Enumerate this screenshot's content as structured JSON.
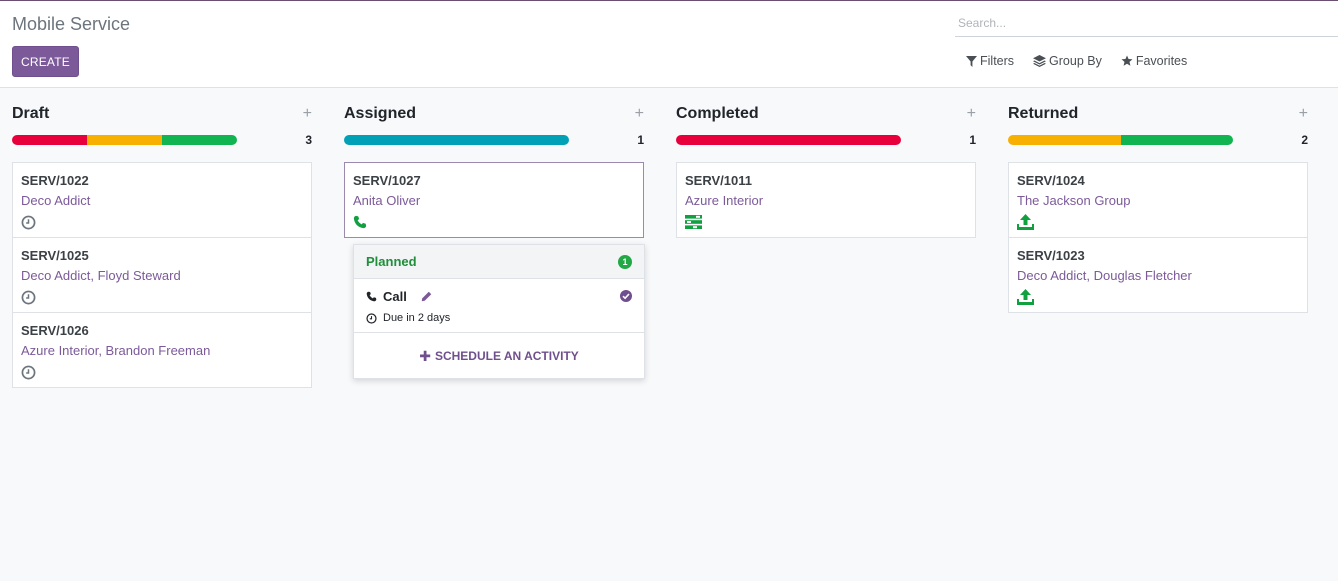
{
  "header": {
    "title": "Mobile Service",
    "create_label": "CREATE",
    "search_placeholder": "Search...",
    "filters_label": "Filters",
    "groupby_label": "Group By",
    "favorites_label": "Favorites"
  },
  "colors": {
    "accent": "#7c5a9a",
    "red": "#e8003c",
    "orange": "#f8b000",
    "green": "#10b450",
    "teal": "#00a1b7"
  },
  "columns": [
    {
      "title": "Draft",
      "count": "3",
      "progress": [
        {
          "color": "#e8003c",
          "fraction": 0.333
        },
        {
          "color": "#f8b000",
          "fraction": 0.333
        },
        {
          "color": "#10b450",
          "fraction": 0.334
        }
      ],
      "cards": [
        {
          "ref": "SERV/1022",
          "partner": "Deco Addict",
          "icon": "clock-icon"
        },
        {
          "ref": "SERV/1025",
          "partner": "Deco Addict, Floyd Steward",
          "icon": "clock-icon"
        },
        {
          "ref": "SERV/1026",
          "partner": "Azure Interior, Brandon Freeman",
          "icon": "clock-icon"
        }
      ]
    },
    {
      "title": "Assigned",
      "count": "1",
      "progress": [
        {
          "color": "#00a1b7",
          "fraction": 1
        }
      ],
      "cards": [
        {
          "ref": "SERV/1027",
          "partner": "Anita Oliver",
          "icon": "phone-icon",
          "active": true
        }
      ]
    },
    {
      "title": "Completed",
      "count": "1",
      "progress": [
        {
          "color": "#e8003c",
          "fraction": 1
        }
      ],
      "cards": [
        {
          "ref": "SERV/1011",
          "partner": "Azure Interior",
          "icon": "tasks-icon"
        }
      ]
    },
    {
      "title": "Returned",
      "count": "2",
      "progress": [
        {
          "color": "#f8b000",
          "fraction": 0.5
        },
        {
          "color": "#10b450",
          "fraction": 0.5
        }
      ],
      "cards": [
        {
          "ref": "SERV/1024",
          "partner": "The Jackson Group",
          "icon": "upload-icon"
        },
        {
          "ref": "SERV/1023",
          "partner": "Deco Addict, Douglas Fletcher",
          "icon": "upload-icon"
        }
      ]
    }
  ],
  "activity_popover": {
    "section_label": "Planned",
    "section_count": "1",
    "activity_name": "Call",
    "due_text": "Due in 2 days",
    "schedule_label": "SCHEDULE AN ACTIVITY"
  }
}
